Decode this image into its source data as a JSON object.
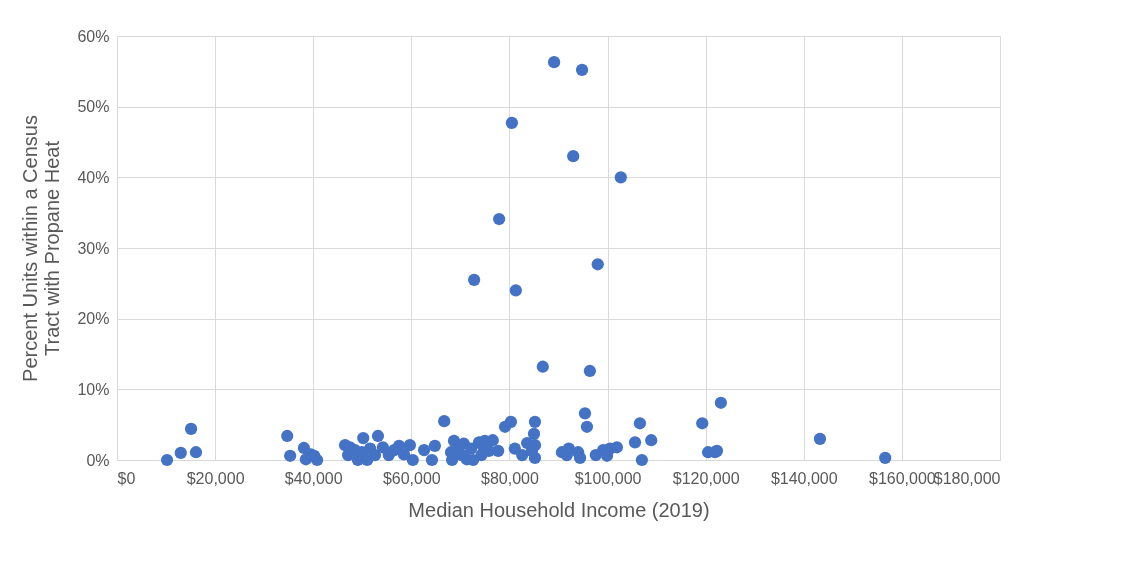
{
  "chart_data": {
    "type": "scatter",
    "xlabel": "Median Household Income (2019)",
    "ylabel": "Percent Units within a Census Tract with Propane Heat",
    "xlim": [
      0,
      180000
    ],
    "xticks": [
      {
        "value": 0,
        "label": "$0"
      },
      {
        "value": 20000,
        "label": "$20,000"
      },
      {
        "value": 40000,
        "label": "$40,000"
      },
      {
        "value": 60000,
        "label": "$60,000"
      },
      {
        "value": 80000,
        "label": "$80,000"
      },
      {
        "value": 100000,
        "label": "$100,000"
      },
      {
        "value": 120000,
        "label": "$120,000"
      },
      {
        "value": 140000,
        "label": "$140,000"
      },
      {
        "value": 160000,
        "label": "$160,000"
      },
      {
        "value": 180000,
        "label": "$180,000"
      }
    ],
    "ylim": [
      0,
      60
    ],
    "yticks": [
      {
        "value": 0,
        "label": "0%"
      },
      {
        "value": 10,
        "label": "10%"
      },
      {
        "value": 20,
        "label": "20%"
      },
      {
        "value": 30,
        "label": "30%"
      },
      {
        "value": 40,
        "label": "40%"
      },
      {
        "value": 50,
        "label": "50%"
      },
      {
        "value": 60,
        "label": "60%"
      }
    ],
    "grid": true,
    "marker": "circle",
    "series": [
      {
        "color": "#4472c4",
        "x": [
          10200,
          13000,
          16100,
          15100,
          34700,
          35300,
          38100,
          38500,
          39500,
          40800,
          40200,
          46500,
          47100,
          47500,
          48500,
          49100,
          49900,
          50200,
          51000,
          51600,
          52600,
          53200,
          54200,
          55400,
          56500,
          57500,
          58500,
          59700,
          60300,
          62600,
          64200,
          64800,
          66700,
          68100,
          68300,
          68700,
          69500,
          70300,
          70700,
          71300,
          72200,
          72600,
          72800,
          73800,
          74300,
          74600,
          75000,
          75800,
          76600,
          77700,
          77900,
          79100,
          80300,
          80500,
          81100,
          81300,
          82600,
          83600,
          84600,
          85000,
          85200,
          85200,
          85200,
          86800,
          89100,
          90700,
          91700,
          92100,
          93000,
          94000,
          94800,
          95400,
          95800,
          96400,
          94400,
          97600,
          98000,
          99100,
          99900,
          100500,
          101900,
          102700,
          105600,
          106600,
          107000,
          108900,
          119300,
          120500,
          121900,
          123100,
          122300,
          143300,
          156600
        ],
        "values": [
          0,
          1.0,
          1.1,
          4.4,
          3.4,
          0.6,
          1.7,
          0.1,
          0.8,
          0,
          0.6,
          2.1,
          0.7,
          1.8,
          1.4,
          0,
          1.1,
          3.1,
          0,
          1.6,
          0.7,
          3.4,
          1.8,
          0.7,
          1.4,
          2.0,
          0.8,
          2.1,
          0,
          1.4,
          0,
          2.0,
          5.5,
          1.1,
          0,
          2.7,
          1.3,
          0.7,
          2.3,
          0.1,
          1.6,
          0,
          25.5,
          2.5,
          0.7,
          2.0,
          2.7,
          1.3,
          2.8,
          1.3,
          34.1,
          4.7,
          5.4,
          47.7,
          1.6,
          24.0,
          0.7,
          2.4,
          1.3,
          3.7,
          5.4,
          2.1,
          0.3,
          13.2,
          56.3,
          1.1,
          0.7,
          1.6,
          43.0,
          1.1,
          55.2,
          6.6,
          4.7,
          12.6,
          0.3,
          0.7,
          27.7,
          1.4,
          0.6,
          1.6,
          1.8,
          40.0,
          2.5,
          5.2,
          0,
          2.8,
          5.2,
          1.1,
          1.1,
          8.1,
          1.3,
          3.0,
          0.3
        ]
      }
    ]
  }
}
